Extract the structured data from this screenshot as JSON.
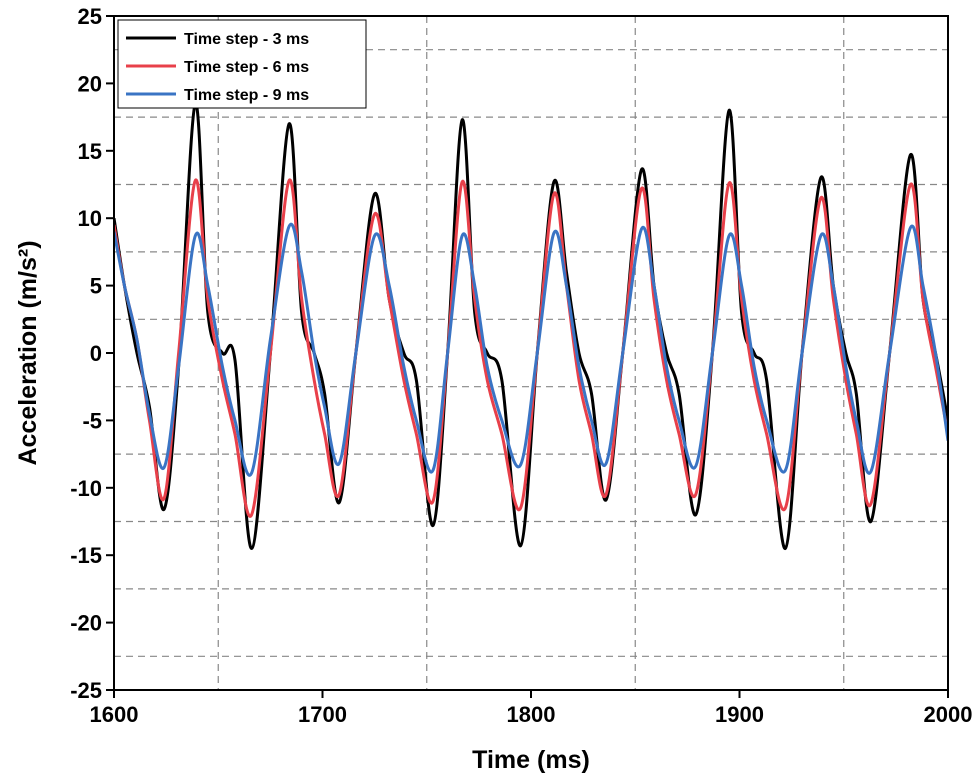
{
  "chart_data": {
    "type": "line",
    "xlabel": "Time (ms)",
    "ylabel": "Acceleration (m/s²)",
    "x": [
      1600,
      1605,
      1611,
      1617,
      1624,
      1631,
      1639,
      1645,
      1652,
      1658,
      1666,
      1675,
      1684,
      1690,
      1696,
      1701,
      1708,
      1716,
      1725,
      1732,
      1739,
      1745,
      1753,
      1760,
      1767,
      1773,
      1779,
      1786,
      1795,
      1803,
      1811,
      1817,
      1823,
      1829,
      1836,
      1844,
      1853,
      1859,
      1865,
      1871,
      1879,
      1887,
      1895,
      1901,
      1907,
      1913,
      1922,
      1930,
      1939,
      1945,
      1951,
      1956,
      1963,
      1972,
      1982,
      1988,
      1994,
      2000
    ],
    "series": [
      {
        "name": "Time step - 3 ms",
        "color": "#000000",
        "values": [
          10,
          5,
          0,
          -4,
          -11.6,
          -1,
          18.5,
          3,
          0,
          -0.5,
          -14.5,
          0,
          17,
          3,
          0,
          -3,
          -11.1,
          0,
          11.8,
          4,
          0,
          -2,
          -12.8,
          0,
          17.3,
          3,
          0,
          -2,
          -14.3,
          0,
          12.7,
          6,
          0,
          -3,
          -10.9,
          0,
          13.6,
          5,
          0,
          -3,
          -12,
          0,
          18,
          3,
          0,
          -2,
          -14.5,
          0,
          13,
          5,
          0,
          -3,
          -12.5,
          0,
          14.7,
          4,
          0,
          -5
        ]
      },
      {
        "name": "Time step - 6 ms",
        "color": "#e8404a",
        "values": [
          9.5,
          5,
          1,
          -5,
          -10.8,
          0,
          12.8,
          4,
          -2,
          -6,
          -12,
          0,
          12.8,
          4,
          -2,
          -6,
          -10.5,
          0,
          10.3,
          4,
          -2,
          -6,
          -11,
          0,
          12.7,
          4,
          -2,
          -6,
          -11.5,
          0,
          11.8,
          5,
          -2,
          -6,
          -10.5,
          0,
          12.2,
          4,
          -2,
          -6,
          -10.5,
          0,
          12.6,
          4,
          -2,
          -6,
          -11.5,
          0,
          11.5,
          4,
          -2,
          -6,
          -11.2,
          0,
          12.5,
          4,
          -1,
          -6
        ]
      },
      {
        "name": "Time step - 9 ms",
        "color": "#3a74c4",
        "values": [
          9,
          5,
          1,
          -4.5,
          -8.5,
          -1,
          8.7,
          5,
          -1,
          -5,
          -8.9,
          1,
          9.4,
          6,
          0,
          -4,
          -8.2,
          0,
          8.7,
          5,
          -1,
          -5,
          -8.7,
          0,
          8.7,
          5,
          -1,
          -5,
          -8.3,
          0,
          8.9,
          5,
          -1,
          -5,
          -8.2,
          0,
          9.2,
          5,
          -1,
          -5,
          -8.4,
          0,
          8.7,
          5,
          -1,
          -5,
          -8.7,
          0,
          8.7,
          5,
          -1,
          -5,
          -8.8,
          0,
          9.3,
          5,
          0,
          -6.5
        ]
      }
    ],
    "xlim": [
      1600,
      2000
    ],
    "xticks": [
      1600,
      1700,
      1800,
      1900,
      2000
    ],
    "ylim": [
      -25,
      25
    ],
    "yticks": [
      -25,
      -20,
      -15,
      -10,
      -5,
      0,
      5,
      10,
      15,
      20,
      25
    ],
    "xminorticks": [
      1650,
      1750,
      1850,
      1950
    ],
    "yminorticks": [
      -22.5,
      -17.5,
      -12.5,
      -7.5,
      -2.5,
      2.5,
      7.5,
      12.5,
      17.5,
      22.5
    ],
    "grid": true,
    "legend": "upper left"
  }
}
